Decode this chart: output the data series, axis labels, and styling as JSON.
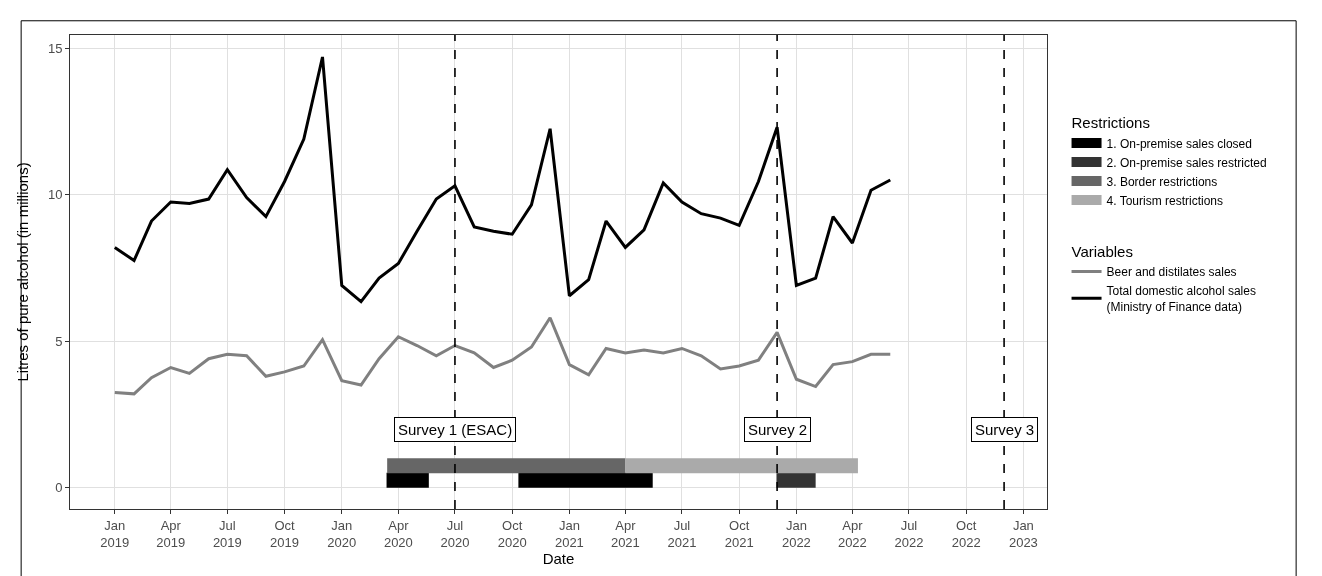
{
  "chart_data": {
    "type": "line",
    "xlabel": "Date",
    "ylabel": "Litres of pure alcohol (in millions)",
    "legend_title": [
      "Restrictions",
      "Variables"
    ],
    "x": [
      "2019-01",
      "2019-02",
      "2019-03",
      "2019-04",
      "2019-05",
      "2019-06",
      "2019-07",
      "2019-08",
      "2019-09",
      "2019-10",
      "2019-11",
      "2019-12",
      "2020-01",
      "2020-02",
      "2020-03",
      "2020-04",
      "2020-05",
      "2020-06",
      "2020-07",
      "2020-08",
      "2020-09",
      "2020-10",
      "2020-11",
      "2020-12",
      "2021-01",
      "2021-02",
      "2021-03",
      "2021-04",
      "2021-05",
      "2021-06",
      "2021-07",
      "2021-08",
      "2021-09",
      "2021-10",
      "2021-11",
      "2021-12",
      "2022-01",
      "2022-02",
      "2022-03",
      "2022-04",
      "2022-05",
      "2022-06"
    ],
    "series": [
      {
        "name": "1. On-premise sales closed",
        "color": "#000000",
        "x": [
          "2020-03-13",
          "2020-05-20",
          "2020-06-01",
          "2020-10-11",
          "2021-05-15"
        ],
        "values": [
          0.25,
          0.25,
          null,
          0.25,
          0.25
        ]
      },
      {
        "name": "2. On-premise sales restricted",
        "color": "#333333",
        "x": [
          "2021-11-30",
          "2022-02-01"
        ],
        "values": [
          0.25,
          0.25
        ]
      },
      {
        "name": "3. Border restrictions",
        "color": "#666666",
        "x": [
          "2020-03-14",
          "2021-04-01"
        ],
        "values": [
          0.75,
          0.75
        ]
      },
      {
        "name": "4. Tourism restrictions",
        "color": "#aaaaaa",
        "x": [
          "2021-04-01",
          "2022-04-10"
        ],
        "values": [
          0.75,
          0.75
        ]
      },
      {
        "name": "Beer and distilates sales",
        "color": "#808080",
        "values": [
          3.25,
          3.2,
          3.75,
          4.1,
          3.9,
          4.4,
          4.55,
          4.5,
          3.8,
          3.95,
          4.15,
          5.05,
          3.65,
          3.5,
          4.4,
          5.15,
          4.85,
          4.5,
          4.85,
          4.6,
          4.1,
          4.35,
          4.8,
          5.8,
          4.2,
          3.85,
          4.75,
          4.6,
          4.7,
          4.6,
          4.75,
          4.5,
          4.05,
          4.15,
          4.35,
          5.3,
          3.7,
          3.45,
          4.2,
          4.3,
          4.55,
          4.55
        ]
      },
      {
        "name": "Total domestic alcohol sales\n(Ministry of Finance data)",
        "color": "#000000",
        "values": [
          8.2,
          7.75,
          9.1,
          9.75,
          9.7,
          9.85,
          10.85,
          9.9,
          9.25,
          10.45,
          11.9,
          14.7,
          6.9,
          6.35,
          7.15,
          7.65,
          8.75,
          9.85,
          10.3,
          8.9,
          8.75,
          8.65,
          9.65,
          12.25,
          6.55,
          7.1,
          9.1,
          8.2,
          8.8,
          10.4,
          9.75,
          9.35,
          9.2,
          8.95,
          10.45,
          12.3,
          6.9,
          7.15,
          9.25,
          8.35,
          10.15,
          10.5
        ]
      }
    ],
    "ref_lines": [
      {
        "axis": "x",
        "value": "2020-07-01",
        "label": "Survey 1 (ESAC)",
        "line_style": "dashed"
      },
      {
        "axis": "x",
        "value": "2021-12-01",
        "label": "Survey 2",
        "line_style": "dashed"
      },
      {
        "axis": "x",
        "value": "2022-12-01",
        "label": "Survey 3",
        "line_style": "dashed"
      }
    ],
    "xlim": [
      "2018-10-21",
      "2023-02-08"
    ],
    "xticks": [
      {
        "value": "2019-01-01",
        "label": "Jan\n2019"
      },
      {
        "value": "2019-04-01",
        "label": "Apr\n2019"
      },
      {
        "value": "2019-07-01",
        "label": "Jul\n2019"
      },
      {
        "value": "2019-10-01",
        "label": "Oct\n2019"
      },
      {
        "value": "2020-01-01",
        "label": "Jan\n2020"
      },
      {
        "value": "2020-04-01",
        "label": "Apr\n2020"
      },
      {
        "value": "2020-07-01",
        "label": "Jul\n2020"
      },
      {
        "value": "2020-10-01",
        "label": "Oct\n2020"
      },
      {
        "value": "2021-01-01",
        "label": "Jan\n2021"
      },
      {
        "value": "2021-04-01",
        "label": "Apr\n2021"
      },
      {
        "value": "2021-07-01",
        "label": "Jul\n2021"
      },
      {
        "value": "2021-10-01",
        "label": "Oct\n2021"
      },
      {
        "value": "2022-01-01",
        "label": "Jan\n2022"
      },
      {
        "value": "2022-04-01",
        "label": "Apr\n2022"
      },
      {
        "value": "2022-07-01",
        "label": "Jul\n2022"
      },
      {
        "value": "2022-10-01",
        "label": "Oct\n2022"
      },
      {
        "value": "2023-01-01",
        "label": "Jan\n2023"
      }
    ],
    "ylim": [
      -0.73,
      15.45
    ],
    "yticks": [
      0,
      5,
      10,
      15
    ],
    "grid": true,
    "legend": "right",
    "marker": "none",
    "line_style": "solid"
  }
}
